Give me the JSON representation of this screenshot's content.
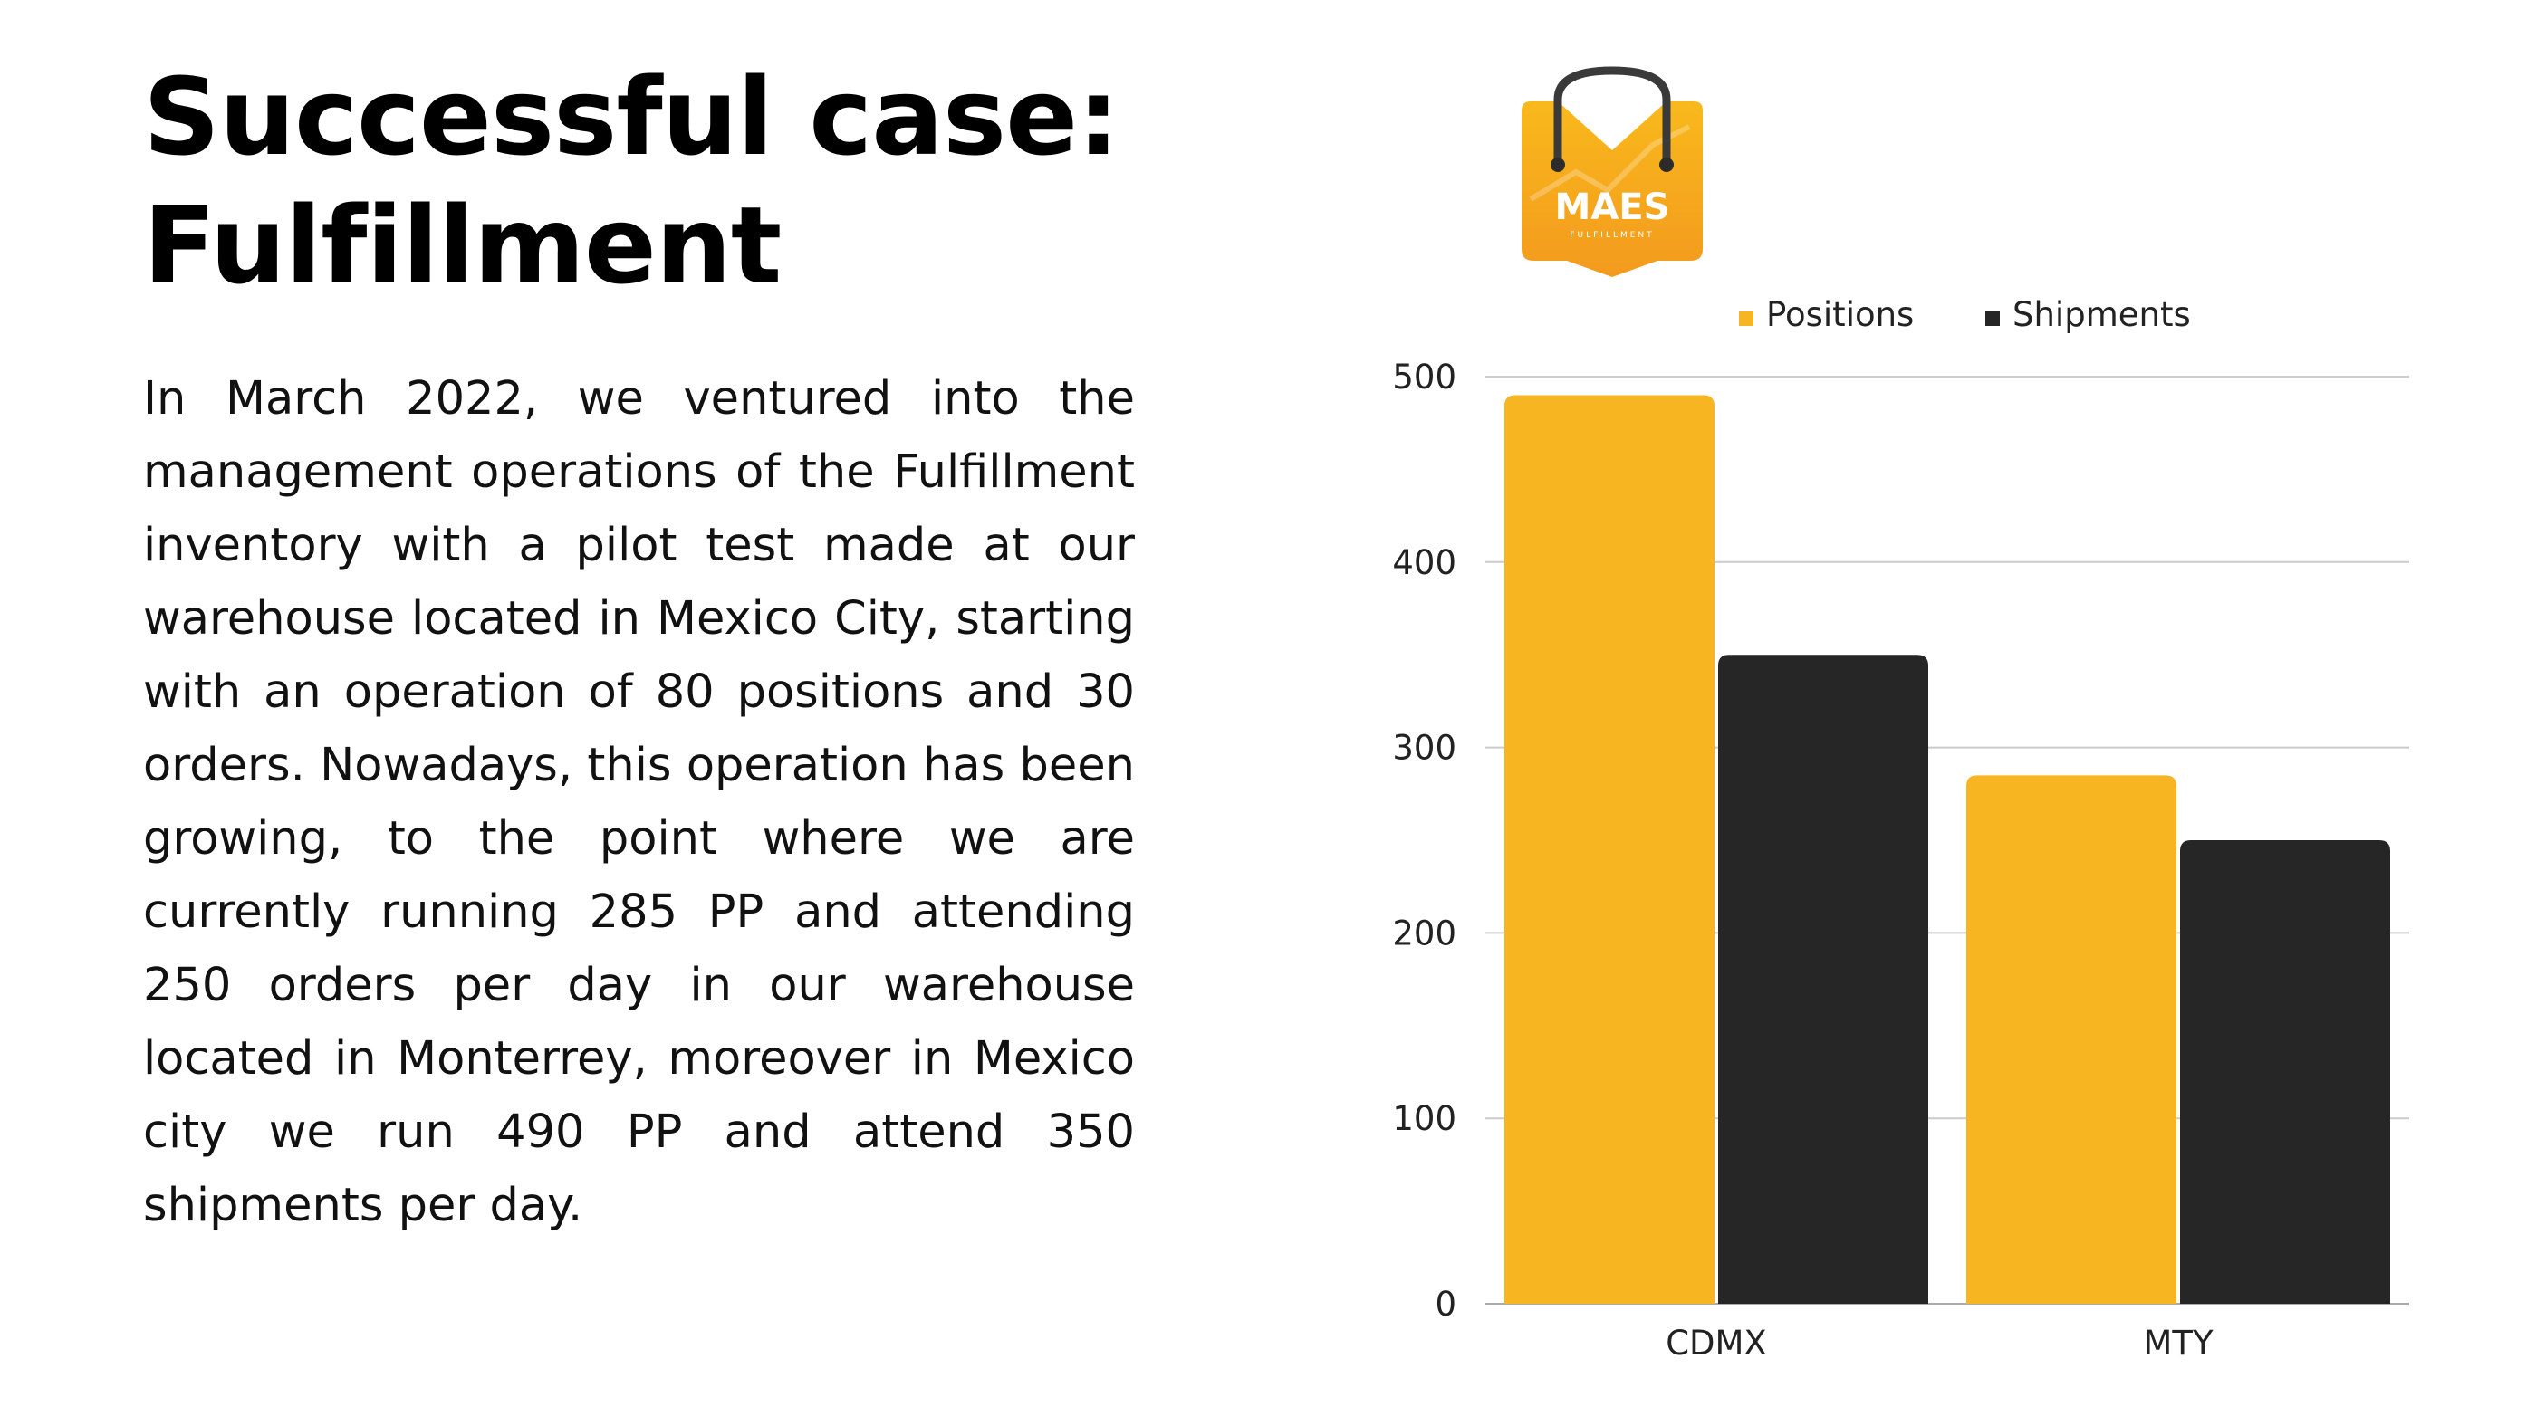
{
  "slide": {
    "title_line1": "Successful case:",
    "title_line2": "Fulfillment",
    "body": "In March 2022, we ventured into the management operations of the Fulfillment inventory with a pilot test made at our warehouse located in Mexico City, starting with an operation of 80 positions and 30 orders. Nowadays, this operation has been growing, to the point where we are currently running 285 PP and attending 250 orders per day in our warehouse located in Monterrey, moreover in Mexico city we run 490 PP and attend 350 shipments per day."
  },
  "logo": {
    "name": "MAES",
    "subtitle": "FULFILLMENT",
    "icon": "shopping-bag-icon",
    "color_top": "#F9B91C",
    "color_bottom": "#F39A1E"
  },
  "chart_data": {
    "type": "bar",
    "categories": [
      "CDMX",
      "MTY"
    ],
    "series": [
      {
        "name": "Positions",
        "values": [
          490,
          285
        ],
        "color": "#F7B521"
      },
      {
        "name": "Shipments",
        "values": [
          350,
          250
        ],
        "color": "#262626"
      }
    ],
    "ylim": [
      0,
      500
    ],
    "yticks": [
      0,
      100,
      200,
      300,
      400,
      500
    ],
    "grid": true,
    "legend": "top"
  }
}
